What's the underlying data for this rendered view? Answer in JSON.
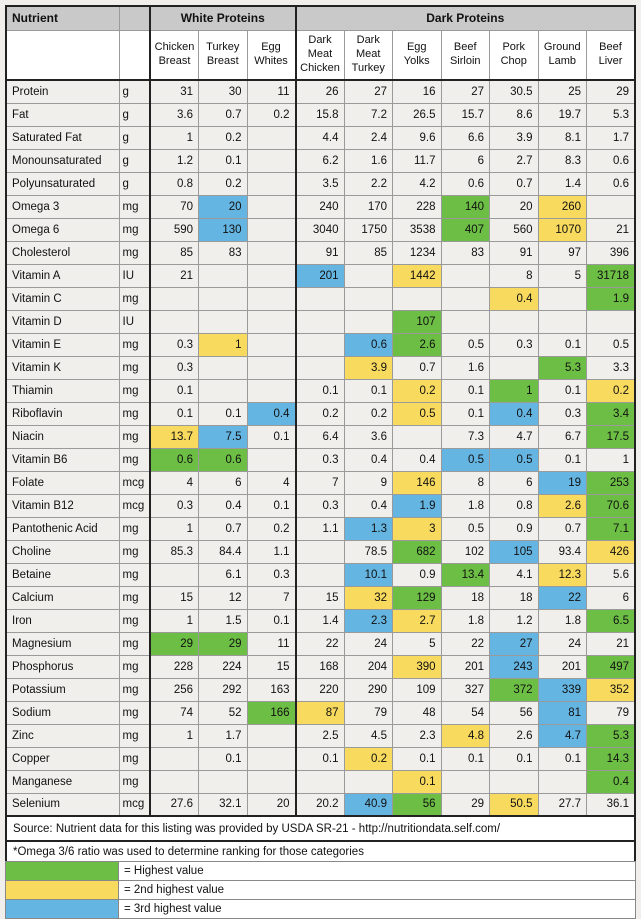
{
  "table": {
    "nutrient_header": "Nutrient",
    "groups": [
      {
        "label": "White Proteins",
        "span": 3
      },
      {
        "label": "Dark Proteins",
        "span": 7
      }
    ],
    "columns": [
      "Chicken Breast",
      "Turkey Breast",
      "Egg Whites",
      "Dark Meat Chicken",
      "Dark Meat Turkey",
      "Egg Yolks",
      "Beef Sirloin",
      "Pork Chop",
      "Ground Lamb",
      "Beef Liver"
    ],
    "rows": [
      {
        "nutrient": "Protein",
        "unit": "g",
        "values": [
          "31",
          "30",
          "11",
          "26",
          "27",
          "16",
          "27",
          "30.5",
          "25",
          "29"
        ],
        "highlights": [
          "",
          "",
          "",
          "",
          "",
          "",
          "",
          "",
          "",
          ""
        ]
      },
      {
        "nutrient": "Fat",
        "unit": "g",
        "values": [
          "3.6",
          "0.7",
          "0.2",
          "15.8",
          "7.2",
          "26.5",
          "15.7",
          "8.6",
          "19.7",
          "5.3"
        ],
        "highlights": [
          "",
          "",
          "",
          "",
          "",
          "",
          "",
          "",
          "",
          ""
        ]
      },
      {
        "nutrient": "Saturated Fat",
        "unit": "g",
        "values": [
          "1",
          "0.2",
          "",
          "4.4",
          "2.4",
          "9.6",
          "6.6",
          "3.9",
          "8.1",
          "1.7"
        ],
        "highlights": [
          "",
          "",
          "",
          "",
          "",
          "",
          "",
          "",
          "",
          ""
        ]
      },
      {
        "nutrient": "Monounsaturated",
        "unit": "g",
        "values": [
          "1.2",
          "0.1",
          "",
          "6.2",
          "1.6",
          "11.7",
          "6",
          "2.7",
          "8.3",
          "0.6"
        ],
        "highlights": [
          "",
          "",
          "",
          "",
          "",
          "",
          "",
          "",
          "",
          ""
        ]
      },
      {
        "nutrient": "Polyunsaturated",
        "unit": "g",
        "values": [
          "0.8",
          "0.2",
          "",
          "3.5",
          "2.2",
          "4.2",
          "0.6",
          "0.7",
          "1.4",
          "0.6"
        ],
        "highlights": [
          "",
          "",
          "",
          "",
          "",
          "",
          "",
          "",
          "",
          ""
        ]
      },
      {
        "nutrient": "Omega 3",
        "unit": "mg",
        "values": [
          "70",
          "20",
          "",
          "240",
          "170",
          "228",
          "140",
          "20",
          "260",
          ""
        ],
        "highlights": [
          "",
          "B",
          "",
          "",
          "",
          "",
          "G",
          "",
          "Y",
          ""
        ]
      },
      {
        "nutrient": "Omega 6",
        "unit": "mg",
        "values": [
          "590",
          "130",
          "",
          "3040",
          "1750",
          "3538",
          "407",
          "560",
          "1070",
          "21"
        ],
        "highlights": [
          "",
          "B",
          "",
          "",
          "",
          "",
          "G",
          "",
          "Y",
          ""
        ]
      },
      {
        "nutrient": "Cholesterol",
        "unit": "mg",
        "values": [
          "85",
          "83",
          "",
          "91",
          "85",
          "1234",
          "83",
          "91",
          "97",
          "396"
        ],
        "highlights": [
          "",
          "",
          "",
          "",
          "",
          "",
          "",
          "",
          "",
          ""
        ]
      },
      {
        "nutrient": "Vitamin A",
        "unit": "IU",
        "values": [
          "21",
          "",
          "",
          "201",
          "",
          "1442",
          "",
          "8",
          "5",
          "31718"
        ],
        "highlights": [
          "",
          "",
          "",
          "B",
          "",
          "Y",
          "",
          "",
          "",
          "G"
        ]
      },
      {
        "nutrient": "Vitamin C",
        "unit": "mg",
        "values": [
          "",
          "",
          "",
          "",
          "",
          "",
          "",
          "0.4",
          "",
          "1.9"
        ],
        "highlights": [
          "",
          "",
          "",
          "",
          "",
          "",
          "",
          "Y",
          "",
          "G"
        ]
      },
      {
        "nutrient": "Vitamin D",
        "unit": "IU",
        "values": [
          "",
          "",
          "",
          "",
          "",
          "107",
          "",
          "",
          "",
          ""
        ],
        "highlights": [
          "",
          "",
          "",
          "",
          "",
          "G",
          "",
          "",
          "",
          ""
        ]
      },
      {
        "nutrient": "Vitamin E",
        "unit": "mg",
        "values": [
          "0.3",
          "1",
          "",
          "",
          "0.6",
          "2.6",
          "0.5",
          "0.3",
          "0.1",
          "0.5"
        ],
        "highlights": [
          "",
          "Y",
          "",
          "",
          "B",
          "G",
          "",
          "",
          "",
          ""
        ]
      },
      {
        "nutrient": "Vitamin K",
        "unit": "mg",
        "values": [
          "0.3",
          "",
          "",
          "",
          "3.9",
          "0.7",
          "1.6",
          "",
          "5.3",
          "3.3"
        ],
        "highlights": [
          "",
          "",
          "",
          "",
          "Y",
          "",
          "",
          "",
          "G",
          ""
        ]
      },
      {
        "nutrient": "Thiamin",
        "unit": "mg",
        "values": [
          "0.1",
          "",
          "",
          "0.1",
          "0.1",
          "0.2",
          "0.1",
          "1",
          "0.1",
          "0.2"
        ],
        "highlights": [
          "",
          "",
          "",
          "",
          "",
          "Y",
          "",
          "G",
          "",
          "Y"
        ]
      },
      {
        "nutrient": "Riboflavin",
        "unit": "mg",
        "values": [
          "0.1",
          "0.1",
          "0.4",
          "0.2",
          "0.2",
          "0.5",
          "0.1",
          "0.4",
          "0.3",
          "3.4"
        ],
        "highlights": [
          "",
          "",
          "B",
          "",
          "",
          "Y",
          "",
          "B",
          "",
          "G"
        ]
      },
      {
        "nutrient": "Niacin",
        "unit": "mg",
        "values": [
          "13.7",
          "7.5",
          "0.1",
          "6.4",
          "3.6",
          "",
          "7.3",
          "4.7",
          "6.7",
          "17.5"
        ],
        "highlights": [
          "Y",
          "B",
          "",
          "",
          "",
          "",
          "",
          "",
          "",
          "G"
        ]
      },
      {
        "nutrient": "Vitamin B6",
        "unit": "mg",
        "values": [
          "0.6",
          "0.6",
          "",
          "0.3",
          "0.4",
          "0.4",
          "0.5",
          "0.5",
          "0.1",
          "1"
        ],
        "highlights": [
          "G",
          "G",
          "",
          "",
          "",
          "",
          "B",
          "B",
          "",
          ""
        ]
      },
      {
        "nutrient": "Folate",
        "unit": "mcg",
        "values": [
          "4",
          "6",
          "4",
          "7",
          "9",
          "146",
          "8",
          "6",
          "19",
          "253"
        ],
        "highlights": [
          "",
          "",
          "",
          "",
          "",
          "Y",
          "",
          "",
          "B",
          "G"
        ]
      },
      {
        "nutrient": "Vitamin B12",
        "unit": "mcg",
        "values": [
          "0.3",
          "0.4",
          "0.1",
          "0.3",
          "0.4",
          "1.9",
          "1.8",
          "0.8",
          "2.6",
          "70.6"
        ],
        "highlights": [
          "",
          "",
          "",
          "",
          "",
          "B",
          "",
          "",
          "Y",
          "G"
        ]
      },
      {
        "nutrient": "Pantothenic Acid",
        "unit": "mg",
        "values": [
          "1",
          "0.7",
          "0.2",
          "1.1",
          "1.3",
          "3",
          "0.5",
          "0.9",
          "0.7",
          "7.1"
        ],
        "highlights": [
          "",
          "",
          "",
          "",
          "B",
          "Y",
          "",
          "",
          "",
          "G"
        ]
      },
      {
        "nutrient": "Choline",
        "unit": "mg",
        "values": [
          "85.3",
          "84.4",
          "1.1",
          "",
          "78.5",
          "682",
          "102",
          "105",
          "93.4",
          "426"
        ],
        "highlights": [
          "",
          "",
          "",
          "",
          "",
          "G",
          "",
          "B",
          "",
          "Y"
        ]
      },
      {
        "nutrient": "Betaine",
        "unit": "mg",
        "values": [
          "",
          "6.1",
          "0.3",
          "",
          "10.1",
          "0.9",
          "13.4",
          "4.1",
          "12.3",
          "5.6"
        ],
        "highlights": [
          "",
          "",
          "",
          "",
          "B",
          "",
          "G",
          "",
          "Y",
          ""
        ]
      },
      {
        "nutrient": "Calcium",
        "unit": "mg",
        "values": [
          "15",
          "12",
          "7",
          "15",
          "32",
          "129",
          "18",
          "18",
          "22",
          "6"
        ],
        "highlights": [
          "",
          "",
          "",
          "",
          "Y",
          "G",
          "",
          "",
          "B",
          ""
        ]
      },
      {
        "nutrient": "Iron",
        "unit": "mg",
        "values": [
          "1",
          "1.5",
          "0.1",
          "1.4",
          "2.3",
          "2.7",
          "1.8",
          "1.2",
          "1.8",
          "6.5"
        ],
        "highlights": [
          "",
          "",
          "",
          "",
          "B",
          "Y",
          "",
          "",
          "",
          "G"
        ]
      },
      {
        "nutrient": "Magnesium",
        "unit": "mg",
        "values": [
          "29",
          "29",
          "11",
          "22",
          "24",
          "5",
          "22",
          "27",
          "24",
          "21"
        ],
        "highlights": [
          "G",
          "G",
          "",
          "",
          "",
          "",
          "",
          "B",
          "",
          ""
        ]
      },
      {
        "nutrient": "Phosphorus",
        "unit": "mg",
        "values": [
          "228",
          "224",
          "15",
          "168",
          "204",
          "390",
          "201",
          "243",
          "201",
          "497"
        ],
        "highlights": [
          "",
          "",
          "",
          "",
          "",
          "Y",
          "",
          "B",
          "",
          "G"
        ]
      },
      {
        "nutrient": "Potassium",
        "unit": "mg",
        "values": [
          "256",
          "292",
          "163",
          "220",
          "290",
          "109",
          "327",
          "372",
          "339",
          "352"
        ],
        "highlights": [
          "",
          "",
          "",
          "",
          "",
          "",
          "",
          "G",
          "B",
          "Y"
        ]
      },
      {
        "nutrient": "Sodium",
        "unit": "mg",
        "values": [
          "74",
          "52",
          "166",
          "87",
          "79",
          "48",
          "54",
          "56",
          "81",
          "79"
        ],
        "highlights": [
          "",
          "",
          "G",
          "Y",
          "",
          "",
          "",
          "",
          "B",
          ""
        ]
      },
      {
        "nutrient": "Zinc",
        "unit": "mg",
        "values": [
          "1",
          "1.7",
          "",
          "2.5",
          "4.5",
          "2.3",
          "4.8",
          "2.6",
          "4.7",
          "5.3"
        ],
        "highlights": [
          "",
          "",
          "",
          "",
          "",
          "",
          "Y",
          "",
          "B",
          "G"
        ]
      },
      {
        "nutrient": "Copper",
        "unit": "mg",
        "values": [
          "",
          "0.1",
          "",
          "0.1",
          "0.2",
          "0.1",
          "0.1",
          "0.1",
          "0.1",
          "14.3"
        ],
        "highlights": [
          "",
          "",
          "",
          "",
          "Y",
          "",
          "",
          "",
          "",
          "G"
        ]
      },
      {
        "nutrient": "Manganese",
        "unit": "mg",
        "values": [
          "",
          "",
          "",
          "",
          "",
          "0.1",
          "",
          "",
          "",
          "0.4"
        ],
        "highlights": [
          "",
          "",
          "",
          "",
          "",
          "Y",
          "",
          "",
          "",
          "G"
        ]
      },
      {
        "nutrient": "Selenium",
        "unit": "mcg",
        "values": [
          "27.6",
          "32.1",
          "20",
          "20.2",
          "40.9",
          "56",
          "29",
          "50.5",
          "27.7",
          "36.1"
        ],
        "highlights": [
          "",
          "",
          "",
          "",
          "B",
          "G",
          "",
          "Y",
          "",
          ""
        ]
      }
    ]
  },
  "footer": {
    "source": "Source: Nutrient data for this listing was provided by USDA SR-21 - http://nutritiondata.self.com/",
    "note": "*Omega 3/6 ratio was used to determine ranking for those categories",
    "legend": [
      {
        "code": "G",
        "label": "= Highest value"
      },
      {
        "code": "Y",
        "label": "= 2nd highest value"
      },
      {
        "code": "B",
        "label": "= 3rd highest value"
      }
    ]
  },
  "colors": {
    "G": "#6cbf44",
    "Y": "#f8da5e",
    "B": "#65b5e2",
    "header_bg": "#c9c9c9"
  }
}
